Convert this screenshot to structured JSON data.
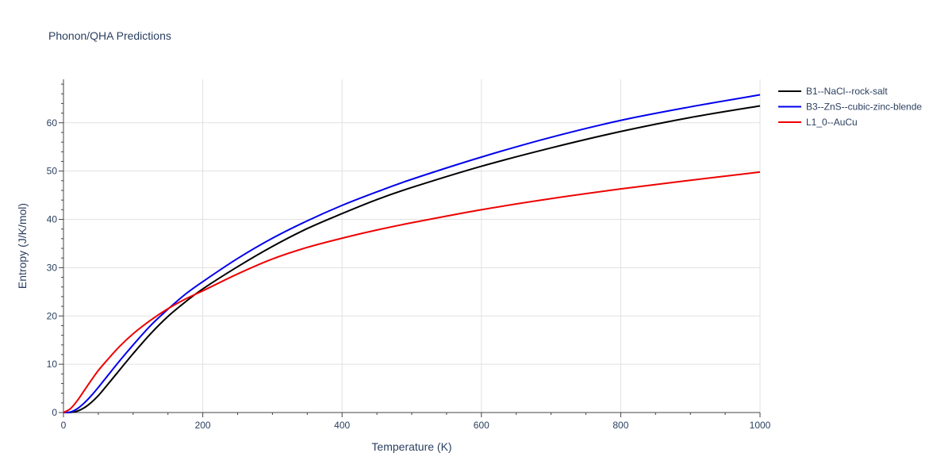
{
  "chart_data": {
    "type": "line",
    "title": "Phonon/QHA Predictions",
    "xlabel": "Temperature (K)",
    "ylabel": "Entropy (J/K/mol)",
    "xlim": [
      0,
      1000
    ],
    "ylim": [
      0,
      69
    ],
    "x_ticks": [
      0,
      200,
      400,
      600,
      800,
      1000
    ],
    "y_ticks": [
      0,
      10,
      20,
      30,
      40,
      50,
      60
    ],
    "grid": true,
    "legend_position": "top-right outside",
    "series": [
      {
        "name": "B1--NaCl--rock-salt",
        "color": "#000000",
        "x": [
          0,
          10,
          20,
          30,
          40,
          50,
          60,
          80,
          100,
          125,
          150,
          175,
          200,
          250,
          300,
          350,
          400,
          450,
          500,
          600,
          700,
          800,
          900,
          1000
        ],
        "y": [
          0,
          0.02,
          0.3,
          1.0,
          2.1,
          3.5,
          5.2,
          8.7,
          12.2,
          16.3,
          19.9,
          22.9,
          25.6,
          30.2,
          34.4,
          38.1,
          41.2,
          44.1,
          46.6,
          51.0,
          54.8,
          58.2,
          61.1,
          63.5
        ]
      },
      {
        "name": "B3--ZnS--cubic-zinc-blende",
        "color": "#0000ee",
        "x": [
          0,
          10,
          20,
          30,
          40,
          50,
          60,
          80,
          100,
          125,
          150,
          175,
          200,
          250,
          300,
          350,
          400,
          450,
          500,
          600,
          700,
          800,
          900,
          1000
        ],
        "y": [
          0,
          0.1,
          0.8,
          2.0,
          3.5,
          5.2,
          7.0,
          10.6,
          14.0,
          18.0,
          21.4,
          24.5,
          27.1,
          31.9,
          36.1,
          39.7,
          42.9,
          45.7,
          48.3,
          52.9,
          57.0,
          60.5,
          63.3,
          65.8
        ]
      },
      {
        "name": "L1_0--AuCu",
        "color": "#ee0000",
        "x": [
          0,
          10,
          20,
          30,
          40,
          50,
          60,
          80,
          100,
          125,
          150,
          175,
          200,
          250,
          300,
          350,
          400,
          450,
          500,
          600,
          700,
          800,
          900,
          1000
        ],
        "y": [
          0,
          0.8,
          2.5,
          4.6,
          6.7,
          8.7,
          10.4,
          13.6,
          16.3,
          19.1,
          21.5,
          23.5,
          25.2,
          28.7,
          31.8,
          34.2,
          36.1,
          37.8,
          39.3,
          42.0,
          44.3,
          46.3,
          48.1,
          49.8
        ]
      }
    ]
  }
}
